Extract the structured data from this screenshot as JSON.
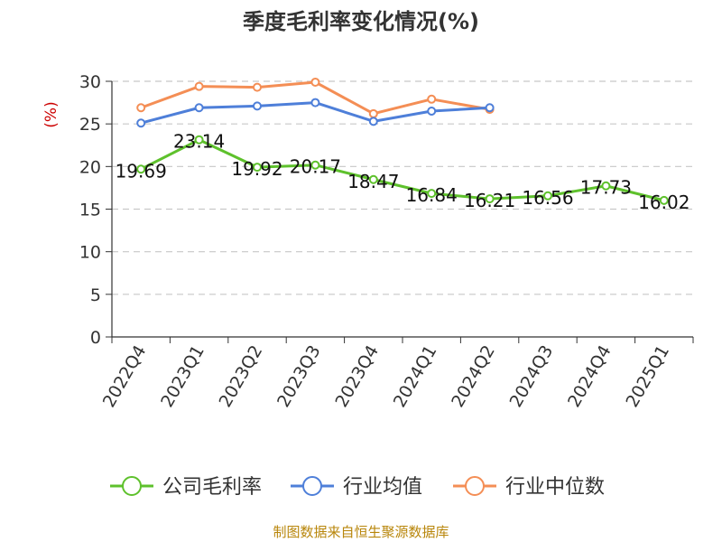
{
  "chart_data": {
    "type": "line",
    "title": "季度毛利率变化情况(%)",
    "ylabel": "(%)",
    "xlabel": "",
    "ylim": [
      0,
      30
    ],
    "yticks": [
      0,
      5,
      10,
      15,
      20,
      25,
      30
    ],
    "grid": true,
    "legend_position": "bottom",
    "categories": [
      "2022Q4",
      "2023Q1",
      "2023Q2",
      "2023Q3",
      "2023Q4",
      "2024Q1",
      "2024Q2",
      "2024Q3",
      "2024Q4",
      "2025Q1"
    ],
    "series": [
      {
        "name": "公司毛利率",
        "color": "#5ec12c",
        "values": [
          19.69,
          23.14,
          19.92,
          20.17,
          18.47,
          16.84,
          16.21,
          16.56,
          17.73,
          16.02
        ],
        "show_labels": true
      },
      {
        "name": "行业均值",
        "color": "#4e7fd9",
        "values": [
          25.1,
          26.9,
          27.1,
          27.5,
          25.3,
          26.5,
          26.9,
          null,
          null,
          null
        ],
        "show_labels": false
      },
      {
        "name": "行业中位数",
        "color": "#f48e55",
        "values": [
          26.9,
          29.4,
          29.3,
          29.9,
          26.2,
          27.9,
          26.7,
          null,
          null,
          null
        ],
        "show_labels": false
      }
    ]
  },
  "footer": {
    "source": "制图数据来自恒生聚源数据库"
  }
}
